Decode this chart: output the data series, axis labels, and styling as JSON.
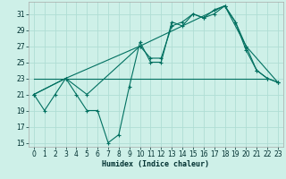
{
  "xlabel": "Humidex (Indice chaleur)",
  "bg_color": "#cef0e8",
  "grid_color": "#b0ddd4",
  "line_color": "#007060",
  "xlim": [
    -0.5,
    23.5
  ],
  "ylim": [
    14.5,
    32.5
  ],
  "xticks": [
    0,
    1,
    2,
    3,
    4,
    5,
    6,
    7,
    8,
    9,
    10,
    11,
    12,
    13,
    14,
    15,
    16,
    17,
    18,
    19,
    20,
    21,
    22,
    23
  ],
  "yticks": [
    15,
    17,
    19,
    21,
    23,
    25,
    27,
    29,
    31
  ],
  "series1_x": [
    0,
    1,
    2,
    3,
    4,
    5,
    6,
    7,
    8,
    9,
    10,
    11,
    12,
    13,
    14,
    15,
    16,
    17,
    18,
    19,
    20,
    21,
    22,
    23
  ],
  "series1_y": [
    21,
    19,
    21,
    23,
    21,
    19,
    19,
    15,
    16,
    22,
    27.5,
    25,
    25,
    30,
    29.5,
    31,
    30.5,
    31,
    32,
    30,
    26.5,
    24,
    23,
    22.5
  ],
  "series2_x": [
    0,
    3,
    5,
    10,
    11,
    12,
    13,
    14,
    15,
    16,
    17,
    18,
    19,
    20,
    21,
    22,
    23
  ],
  "series2_y": [
    21,
    23,
    21,
    27,
    25.5,
    25.5,
    29.5,
    30,
    31,
    30.5,
    31.5,
    32,
    30,
    27,
    24,
    23,
    22.5
  ],
  "series3_x": [
    0,
    3,
    10,
    18,
    20,
    23
  ],
  "series3_y": [
    21,
    23,
    27,
    32,
    27,
    22.5
  ],
  "series4_x": [
    0,
    22
  ],
  "series4_y": [
    23,
    23
  ]
}
